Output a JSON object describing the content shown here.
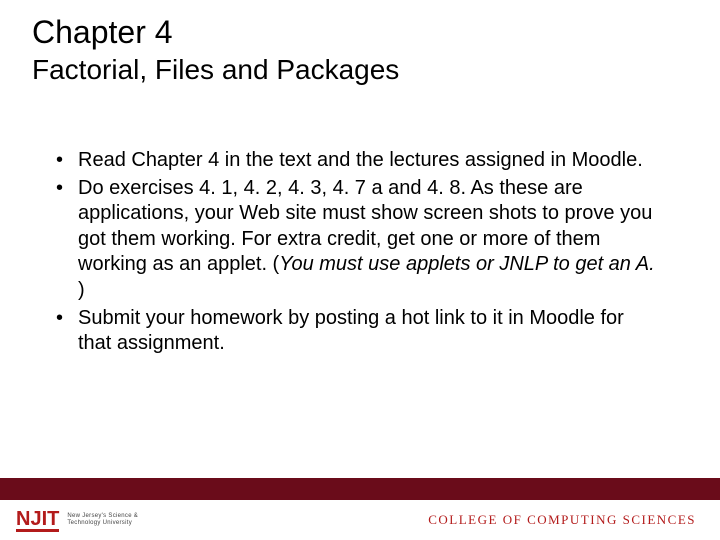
{
  "title": {
    "chapter": "Chapter 4",
    "subtitle": "Factorial, Files and Packages"
  },
  "bullets": [
    {
      "text": "Read Chapter 4 in the text and the lectures assigned in Moodle."
    },
    {
      "text": "Do exercises 4. 1, 4. 2, 4. 3, 4. 7 a and 4. 8. As these are applications, your Web site must show screen shots to prove you got them working. For extra credit, get one or more of them working as an applet. (",
      "italic_suffix": "You must use applets or JNLP to get an A. ",
      "suffix": ")"
    },
    {
      "text": "Submit your homework by posting a hot link to it in Moodle for that assignment."
    }
  ],
  "footer": {
    "logo_mark": "NJIT",
    "logo_sub_line1": "New Jersey's Science &",
    "logo_sub_line2": "Technology University",
    "college": "COLLEGE OF COMPUTING SCIENCES",
    "bar_color": "#6a0c1a",
    "brand_color": "#b31b1b"
  },
  "colors": {
    "background": "#ffffff",
    "text": "#000000"
  }
}
